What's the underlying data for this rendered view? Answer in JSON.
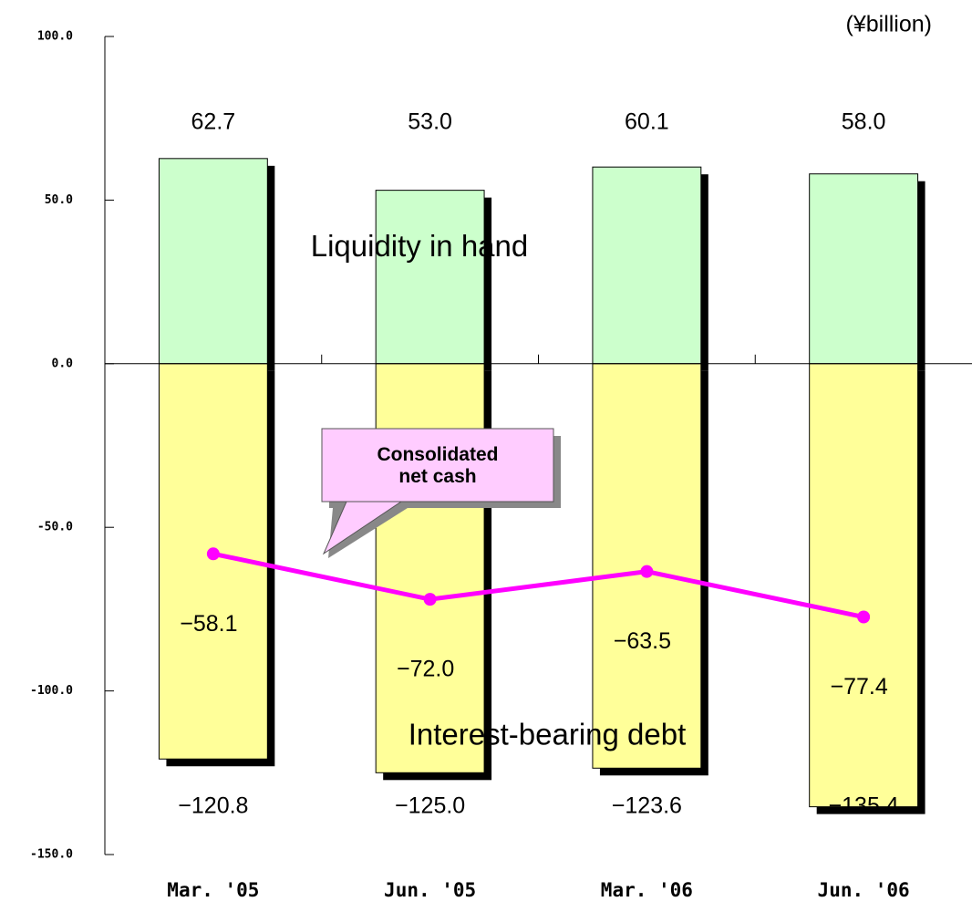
{
  "chart_data": {
    "type": "bar_line",
    "unit_label": "(¥billion)",
    "categories": [
      "Mar. '05",
      "Jun. '05",
      "Mar. '06",
      "Jun. '06"
    ],
    "series": [
      {
        "name": "Liquidity in hand",
        "color": "#ccffcc",
        "values": [
          62.7,
          53.0,
          60.1,
          58.0
        ],
        "value_labels": [
          "62.7",
          "53.0",
          "60.1",
          "58.0"
        ]
      },
      {
        "name": "Interest-bearing debt",
        "color": "#ffff99",
        "values": [
          -120.8,
          -125.0,
          -123.6,
          -135.4
        ],
        "value_labels": [
          "−120.8",
          "−125.0",
          "−123.6",
          "−135.4"
        ]
      },
      {
        "name": "Consolidated net cash",
        "color": "#ff00ff",
        "values": [
          -58.1,
          -72.0,
          -63.5,
          -77.4
        ],
        "value_labels": [
          "−58.1",
          "−72.0",
          "−63.5",
          "−77.4"
        ]
      }
    ],
    "ylim": [
      -150,
      100
    ],
    "yticks": [
      {
        "value": 100,
        "label": "100.0"
      },
      {
        "value": 50,
        "label": "50.0"
      },
      {
        "value": 0,
        "label": "0.0"
      },
      {
        "value": -50,
        "label": "-50.0"
      },
      {
        "value": -100,
        "label": "-100.0"
      },
      {
        "value": -150,
        "label": "-150.0"
      }
    ]
  }
}
